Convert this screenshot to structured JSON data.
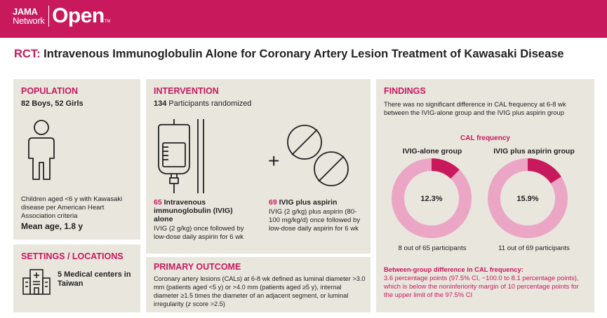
{
  "header": {
    "brand_line1": "JAMA",
    "brand_line2": "Network",
    "brand_big": "Open",
    "brand_tm": "TM",
    "color": "#c8195c"
  },
  "title": {
    "prefix": "RCT:",
    "text": "Intravenous Immunoglobulin Alone for Coronary Artery Lesion Treatment of Kawasaki Disease"
  },
  "population": {
    "heading": "POPULATION",
    "counts": "82 Boys, 52 Girls",
    "description": "Children aged <6 y with Kawasaki disease per American Heart Association criteria",
    "mean_age": "Mean age, 1.8 y",
    "icon": "child-icon"
  },
  "settings": {
    "heading": "SETTINGS / LOCATIONS",
    "text": "5 Medical centers in Taiwan",
    "icon": "hospital-building-icon"
  },
  "intervention": {
    "heading": "INTERVENTION",
    "randomized_count": "134",
    "randomized_text": "Participants randomized",
    "arm1": {
      "count": "65",
      "name": "Intravenous immunoglobulin (IVIG) alone",
      "description": "IVIG (2 g/kg) once followed by low-dose daily aspirin for 6 wk",
      "icon": "iv-bag-icon"
    },
    "plus": "+",
    "arm2": {
      "count": "69",
      "name": "IVIG plus aspirin",
      "description": "IVIG (2 g/kg) plus aspirin (80-100 mg/kg/d) once followed by low-dose daily aspirin for 6 wk",
      "icon": "pills-icon"
    }
  },
  "primary_outcome": {
    "heading": "PRIMARY OUTCOME",
    "text_before": "Coronary artery lesions (CALs) at 6-8 wk defined as luminal diameter >3.0 mm (patients aged <5 y) or >4.0 mm (patients aged ≥5 y), internal diameter ≥1.5 times the diameter of an adjacent segment, or luminal irregularity (",
    "text_italic": "z",
    "text_after": " score >2.5)"
  },
  "findings": {
    "heading": "FINDINGS",
    "summary": "There was no significant difference in CAL frequency at 6-8 wk between the IVIG-alone group and the IVIG plus aspirin group",
    "chart_label": "CAL frequency",
    "groups": [
      {
        "name": "IVIG-alone group",
        "percent_label": "12.3%",
        "value": 12.3,
        "participants": "8 out of 65 participants"
      },
      {
        "name": "IVIG plus aspirin group",
        "percent_label": "15.9%",
        "value": 15.9,
        "participants": "11 out of 69 participants"
      }
    ],
    "difference_heading": "Between-group difference in CAL frequency:",
    "difference_text": "3.6 percentage points (97.5% CI, −100.0 to 8.1 percentage points), which is below the noninferiority margin of 10 percentage points for the upper limit of the 97.5% CI",
    "colors": {
      "accent": "#c8195c",
      "ring_light": "#eba6c6",
      "panel": "#e9e6de"
    }
  },
  "chart_data": {
    "type": "pie",
    "title": "CAL frequency",
    "categories": [
      "IVIG-alone group",
      "IVIG plus aspirin group"
    ],
    "values": [
      12.3,
      15.9
    ],
    "unit": "%"
  }
}
